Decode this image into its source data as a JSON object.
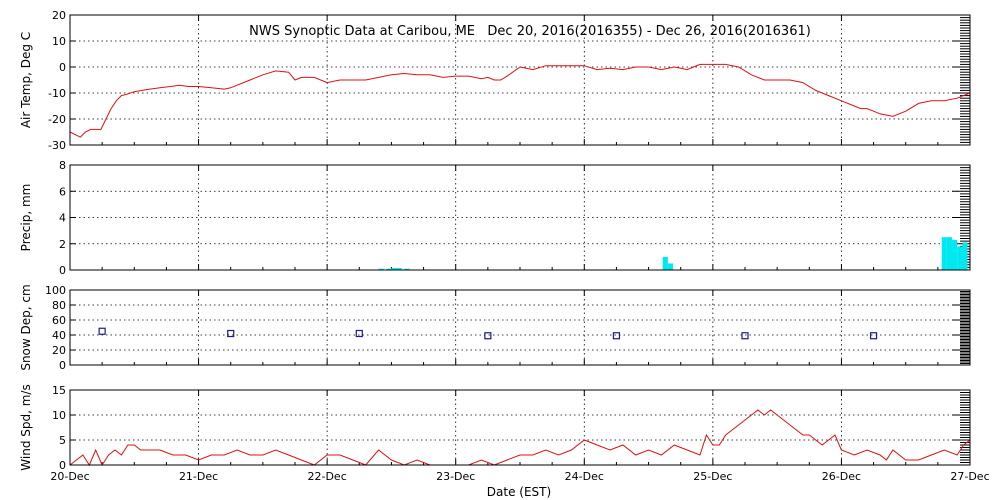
{
  "chart_data": {
    "type": "multi-panel time series",
    "title": "NWS Synoptic Data at Caribou, ME   Dec 20, 2016(2016355) - Dec 26, 2016(2016361)",
    "xlabel": "Date (EST)",
    "x_ticks": [
      "20-Dec",
      "21-Dec",
      "22-Dec",
      "23-Dec",
      "24-Dec",
      "25-Dec",
      "26-Dec",
      "27-Dec"
    ],
    "x_range_days": [
      0,
      7
    ],
    "grid": "dotted",
    "panels": [
      {
        "name": "air_temp",
        "type": "line",
        "ylabel": "Air Temp, Deg C",
        "ylim": [
          -30,
          20
        ],
        "y_ticks": [
          "-30",
          "-20",
          "-10",
          "0",
          "10",
          "20"
        ],
        "y_tick_values": [
          -30,
          -20,
          -10,
          0,
          10,
          20
        ],
        "color": "#e01010",
        "x": [
          0,
          0.08,
          0.12,
          0.16,
          0.2,
          0.24,
          0.28,
          0.32,
          0.36,
          0.4,
          0.44,
          0.5,
          0.56,
          0.62,
          0.7,
          0.78,
          0.85,
          0.92,
          1.0,
          1.1,
          1.2,
          1.25,
          1.3,
          1.35,
          1.4,
          1.5,
          1.6,
          1.7,
          1.75,
          1.8,
          1.85,
          1.9,
          2.0,
          2.1,
          2.15,
          2.2,
          2.3,
          2.4,
          2.5,
          2.6,
          2.7,
          2.8,
          2.9,
          3.0,
          3.1,
          3.2,
          3.25,
          3.3,
          3.35,
          3.4,
          3.5,
          3.6,
          3.7,
          3.8,
          3.9,
          4.0,
          4.1,
          4.2,
          4.3,
          4.4,
          4.5,
          4.6,
          4.7,
          4.75,
          4.8,
          4.85,
          4.9,
          5.0,
          5.1,
          5.2,
          5.3,
          5.4,
          5.5,
          5.6,
          5.7,
          5.8,
          5.9,
          6.0,
          6.1,
          6.15,
          6.2,
          6.25,
          6.3,
          6.4,
          6.5,
          6.6,
          6.7,
          6.8,
          6.9,
          7.0
        ],
        "y": [
          -25,
          -27,
          -25,
          -24,
          -24,
          -24,
          -20,
          -16,
          -13,
          -11,
          -10.5,
          -9.5,
          -9,
          -8.5,
          -8,
          -7.5,
          -7,
          -7.5,
          -7.5,
          -8,
          -8.5,
          -8,
          -7,
          -6,
          -5,
          -3,
          -1.5,
          -2,
          -5,
          -4,
          -4,
          -4,
          -6,
          -5,
          -5,
          -5,
          -5,
          -4,
          -3,
          -2.5,
          -3,
          -3,
          -4,
          -3.5,
          -3.5,
          -4.5,
          -4,
          -5,
          -5,
          -3.5,
          0,
          -1,
          0.5,
          0.5,
          0.5,
          0.5,
          -1,
          -0.5,
          -1,
          0,
          0,
          -1,
          0,
          -0.5,
          -1,
          0,
          1,
          1,
          1,
          0,
          -3,
          -5,
          -5,
          -5,
          -6,
          -9,
          -11,
          -13,
          -15,
          -16,
          -16,
          -17,
          -18,
          -19,
          -17,
          -14,
          -13,
          -13,
          -12,
          -10
        ]
      },
      {
        "name": "precip",
        "type": "bar",
        "ylabel": "Precip, mm",
        "ylim": [
          0,
          8
        ],
        "y_ticks": [
          "0",
          "2",
          "4",
          "6",
          "8"
        ],
        "y_tick_values": [
          0,
          2,
          4,
          6,
          8
        ],
        "color": "#00e8f0",
        "bar_width_days": 0.04,
        "x": [
          2.42,
          2.48,
          2.52,
          2.56,
          2.62,
          4.63,
          4.67,
          6.8,
          6.84,
          6.88,
          6.92,
          6.96
        ],
        "y": [
          0.1,
          0.1,
          0.15,
          0.15,
          0.1,
          1.0,
          0.5,
          2.5,
          2.5,
          2.3,
          1.8,
          2.1
        ]
      },
      {
        "name": "snow_depth",
        "type": "scatter",
        "ylabel": "Snow Dep, cm",
        "ylim": [
          0,
          100
        ],
        "y_ticks": [
          "0",
          "20",
          "40",
          "60",
          "80",
          "100"
        ],
        "y_tick_values": [
          0,
          20,
          40,
          60,
          80,
          100
        ],
        "color": "#1a1a8c",
        "x": [
          0.25,
          1.25,
          2.25,
          3.25,
          4.25,
          5.25,
          6.25
        ],
        "y": [
          45,
          42,
          42,
          39,
          39,
          39,
          39
        ]
      },
      {
        "name": "wind_speed",
        "type": "line",
        "ylabel": "Wind Spd, m/s",
        "ylim": [
          0,
          15
        ],
        "y_ticks": [
          "0",
          "5",
          "10",
          "15"
        ],
        "y_tick_values": [
          0,
          5,
          10,
          15
        ],
        "color": "#e01010",
        "x": [
          0,
          0.05,
          0.1,
          0.15,
          0.2,
          0.25,
          0.3,
          0.35,
          0.4,
          0.45,
          0.5,
          0.55,
          0.6,
          0.7,
          0.8,
          0.9,
          1.0,
          1.1,
          1.2,
          1.3,
          1.4,
          1.5,
          1.6,
          1.7,
          1.8,
          1.9,
          2.0,
          2.1,
          2.2,
          2.3,
          2.4,
          2.5,
          2.6,
          2.7,
          2.8,
          2.9,
          3.0,
          3.1,
          3.2,
          3.3,
          3.4,
          3.5,
          3.6,
          3.7,
          3.8,
          3.9,
          4.0,
          4.1,
          4.2,
          4.3,
          4.4,
          4.5,
          4.6,
          4.7,
          4.8,
          4.9,
          4.95,
          5.0,
          5.05,
          5.1,
          5.15,
          5.2,
          5.25,
          5.3,
          5.35,
          5.4,
          5.45,
          5.5,
          5.55,
          5.6,
          5.65,
          5.7,
          5.75,
          5.8,
          5.85,
          5.9,
          5.95,
          6.0,
          6.1,
          6.2,
          6.3,
          6.35,
          6.4,
          6.5,
          6.6,
          6.7,
          6.8,
          6.9,
          6.95,
          7.0
        ],
        "y": [
          0,
          1,
          2,
          0,
          3,
          0,
          2,
          3,
          2,
          4,
          4,
          3,
          3,
          3,
          2,
          2,
          1,
          2,
          2,
          3,
          2,
          2,
          3,
          2,
          1,
          0,
          2,
          2,
          1,
          0,
          3,
          1,
          0,
          1,
          0,
          0,
          0,
          0,
          1,
          0,
          1,
          2,
          2,
          3,
          2,
          3,
          5,
          4,
          3,
          4,
          2,
          3,
          2,
          4,
          3,
          2,
          6,
          4,
          4,
          6,
          7,
          8,
          9,
          10,
          11,
          10,
          11,
          10,
          9,
          8,
          7,
          6,
          6,
          5,
          4,
          5,
          6,
          3,
          2,
          3,
          2,
          1,
          3,
          1,
          1,
          2,
          3,
          2,
          4,
          5
        ]
      }
    ]
  }
}
